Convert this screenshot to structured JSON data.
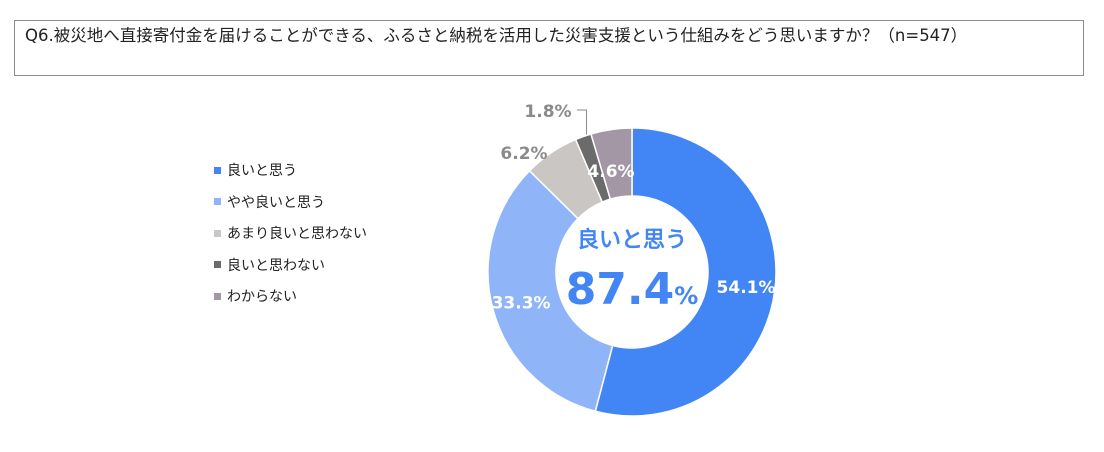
{
  "question": {
    "text": "Q6.被災地へ直接寄付金を届けることができる、ふるさと納税を活用した災害支援という仕組みをどう思いますか？",
    "n_label": "（n=547）"
  },
  "colors": {
    "series": [
      "#4285f4",
      "#8fb4f8",
      "#c9c6c4",
      "#6b6b6b",
      "#a497a5"
    ],
    "center_text": "#4285f4",
    "outside_label": "#8a8a8a",
    "inside_label": "#ffffff",
    "leader_line": "#8a8a8a"
  },
  "chart_data": {
    "type": "pie",
    "donut": true,
    "categories": [
      "良いと思う",
      "やや良いと思う",
      "あまり良いと思わない",
      "良いと思わない",
      "わからない"
    ],
    "values": [
      54.1,
      33.3,
      6.2,
      1.8,
      4.6
    ],
    "data_labels": [
      "54.1%",
      "33.3%",
      "6.2%",
      "1.8%",
      "4.6%"
    ],
    "legend_position": "left",
    "center": {
      "title": "良いと思う",
      "value": "87.4",
      "unit": "%"
    }
  }
}
